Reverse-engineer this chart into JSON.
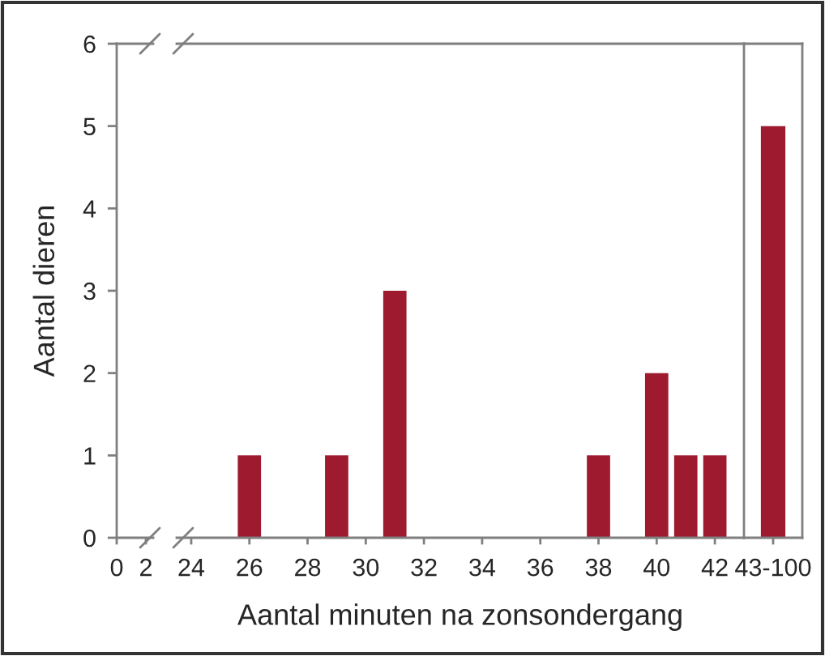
{
  "chart_data": [
    {
      "type": "bar",
      "ylabel": "Aantal dieren",
      "xlim": [
        0,
        2.5
      ],
      "xticks": [
        0,
        2
      ],
      "ylim": [
        0,
        6
      ],
      "yticks": [
        0,
        1,
        2,
        3,
        4,
        5,
        6
      ]
    },
    {
      "type": "bar",
      "x": [
        26,
        29,
        31,
        38,
        40,
        41,
        42
      ],
      "values": [
        1,
        1,
        3,
        1,
        2,
        1,
        1
      ],
      "color": "#9e1b2f",
      "xlabel": "Aantal minuten na zonsondergang",
      "xlim": [
        23.5,
        43
      ],
      "xticks": [
        24,
        26,
        28,
        30,
        32,
        34,
        36,
        38,
        40,
        42
      ],
      "ylim": [
        0,
        6
      ],
      "tick_labels": "x"
    },
    {
      "type": "bar",
      "categories": [
        "43-100"
      ],
      "values": [
        5
      ],
      "color": "#9e1b2f",
      "ylim": [
        0,
        6
      ],
      "tick_labels": "x"
    }
  ]
}
